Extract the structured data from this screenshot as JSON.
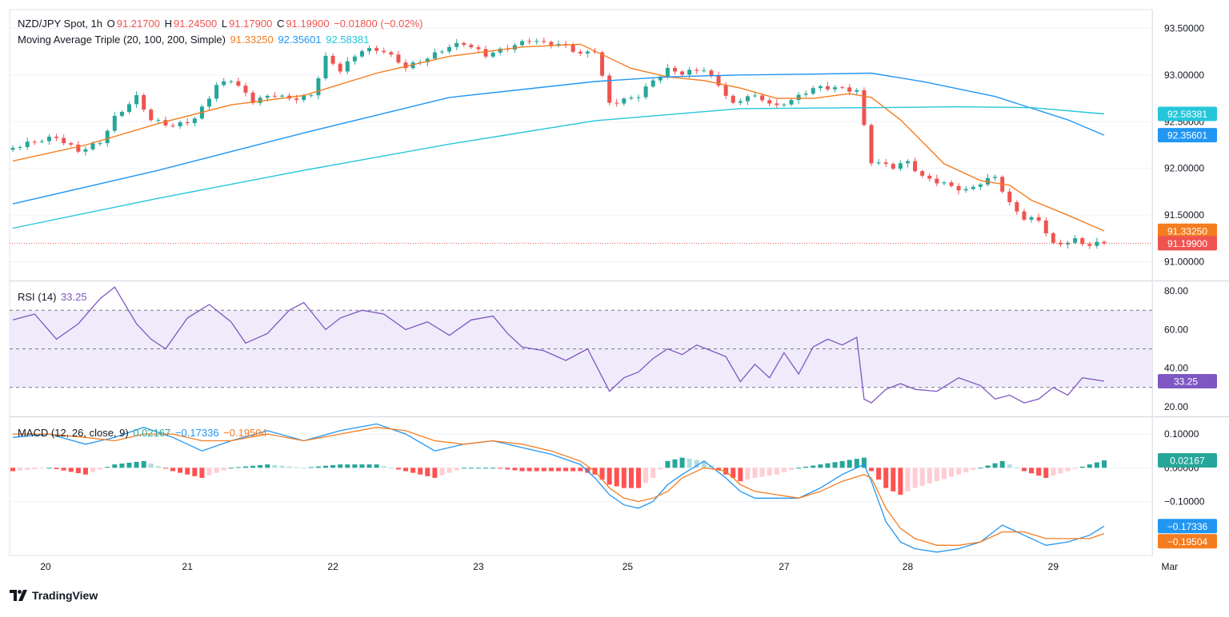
{
  "header": {
    "symbol": "NZD/JPY Spot, 1h",
    "o_label": "O",
    "o_value": "91.21700",
    "h_label": "H",
    "h_value": "91.24500",
    "l_label": "L",
    "l_value": "91.17900",
    "c_label": "C",
    "c_value": "91.19900",
    "change": "−0.01800 (−0.02%)",
    "ma_label": "Moving Average Triple (20, 100, 200, Simple)",
    "ma20_value": "91.33250",
    "ma100_value": "92.35601",
    "ma200_value": "92.58381"
  },
  "rsi": {
    "label": "RSI (14)",
    "value": "33.25"
  },
  "macd": {
    "label": "MACD (12, 26, close, 9)",
    "hist_value": "0.02167",
    "macd_value": "−0.17336",
    "signal_value": "−0.19504"
  },
  "footer": {
    "brand": "TradingView"
  },
  "colors": {
    "up": "#26a69a",
    "down": "#ef5350",
    "ma20": "#f57c1f",
    "ma100": "#2196f3",
    "ma200": "#26c6da",
    "rsi": "#7e57c2",
    "rsi_band": "#f0ebfa",
    "macd_line": "#2196f3",
    "signal_line": "#f57c1f",
    "hist_up_strong": "#26a69a",
    "hist_up_weak": "#b2dfdb",
    "hist_down_strong": "#ff5252",
    "hist_down_weak": "#ffcdd2"
  },
  "chart_data": [
    {
      "type": "candlestick",
      "title": "NZD/JPY Spot, 1h",
      "x_ticks": [
        "20",
        "21",
        "22",
        "23",
        "25",
        "27",
        "28",
        "29",
        "Mar"
      ],
      "y_ticks": [
        "93.50000",
        "93.00000",
        "92.50000",
        "92.00000",
        "91.50000",
        "91.00000"
      ],
      "ylim": [
        90.8,
        93.7
      ],
      "last_close": 91.199,
      "price_labels": [
        {
          "name": "MA 200",
          "value": "92.58381"
        },
        {
          "name": "MA 100",
          "value": "92.35601"
        },
        {
          "name": "MA 20",
          "value": "91.33250"
        },
        {
          "name": "Close",
          "value": "91.19900"
        }
      ],
      "close_path": [
        [
          0,
          92.22
        ],
        [
          6,
          92.32
        ],
        [
          9,
          92.2
        ],
        [
          12,
          92.3
        ],
        [
          14,
          92.55
        ],
        [
          17,
          92.75
        ],
        [
          19,
          92.5
        ],
        [
          22,
          92.45
        ],
        [
          25,
          92.55
        ],
        [
          28,
          92.9
        ],
        [
          30,
          92.95
        ],
        [
          33,
          92.7
        ],
        [
          36,
          92.78
        ],
        [
          38,
          92.75
        ],
        [
          41,
          92.8
        ],
        [
          43,
          93.2
        ],
        [
          45,
          93.05
        ],
        [
          48,
          93.25
        ],
        [
          51,
          93.25
        ],
        [
          54,
          93.1
        ],
        [
          57,
          93.2
        ],
        [
          60,
          93.3
        ],
        [
          62,
          93.32
        ],
        [
          65,
          93.2
        ],
        [
          68,
          93.3
        ],
        [
          71,
          93.4
        ],
        [
          73,
          93.35
        ],
        [
          76,
          93.3
        ],
        [
          78,
          93.2
        ],
        [
          80,
          93.25
        ],
        [
          82,
          92.7
        ],
        [
          84,
          92.75
        ],
        [
          86,
          92.8
        ],
        [
          88,
          92.95
        ],
        [
          90,
          93.05
        ],
        [
          92,
          93.0
        ],
        [
          95,
          93.05
        ],
        [
          97,
          92.9
        ],
        [
          99,
          92.7
        ],
        [
          101,
          92.8
        ],
        [
          103,
          92.75
        ],
        [
          105,
          92.65
        ],
        [
          108,
          92.75
        ],
        [
          110,
          92.85
        ],
        [
          113,
          92.88
        ],
        [
          116,
          92.85
        ],
        [
          118,
          92.08
        ],
        [
          121,
          92.0
        ],
        [
          123,
          92.05
        ],
        [
          125,
          91.9
        ],
        [
          128,
          91.85
        ],
        [
          131,
          91.78
        ],
        [
          133,
          91.85
        ],
        [
          135,
          91.9
        ],
        [
          137,
          91.6
        ],
        [
          139,
          91.45
        ],
        [
          141,
          91.45
        ],
        [
          143,
          91.2
        ],
        [
          146,
          91.25
        ],
        [
          148,
          91.18
        ],
        [
          150,
          91.2
        ]
      ],
      "series": [
        {
          "name": "Moving Average 20",
          "x": [
            0,
            10,
            20,
            30,
            40,
            50,
            60,
            70,
            78,
            85,
            90,
            95,
            100,
            105,
            110,
            115,
            118,
            122,
            128,
            133,
            137,
            140,
            145,
            150
          ],
          "y": [
            92.08,
            92.25,
            92.48,
            92.68,
            92.78,
            93.02,
            93.2,
            93.3,
            93.33,
            93.07,
            92.98,
            92.94,
            92.86,
            92.75,
            92.75,
            92.8,
            92.76,
            92.52,
            92.05,
            91.87,
            91.82,
            91.66,
            91.5,
            91.33
          ]
        },
        {
          "name": "Moving Average 100",
          "x": [
            0,
            20,
            40,
            60,
            80,
            90,
            100,
            110,
            118,
            125,
            135,
            145,
            150
          ],
          "y": [
            91.62,
            91.98,
            92.38,
            92.76,
            92.93,
            92.98,
            93.0,
            93.01,
            93.02,
            92.93,
            92.77,
            92.52,
            92.356
          ]
        },
        {
          "name": "Moving Average 200",
          "x": [
            0,
            20,
            40,
            60,
            80,
            100,
            118,
            130,
            140,
            150
          ],
          "y": [
            91.36,
            91.68,
            91.98,
            92.26,
            92.51,
            92.64,
            92.65,
            92.66,
            92.65,
            92.584
          ]
        }
      ]
    },
    {
      "type": "line",
      "title": "RSI (14)",
      "y_ticks": [
        "80.00",
        "60.00",
        "40.00",
        "20.00"
      ],
      "ylim": [
        15,
        85
      ],
      "bands": [
        70,
        50,
        30
      ],
      "series": [
        {
          "name": "RSI",
          "x": [
            0,
            3,
            6,
            9,
            12,
            14,
            17,
            19,
            21,
            24,
            27,
            30,
            32,
            35,
            38,
            40,
            43,
            45,
            48,
            51,
            54,
            57,
            60,
            63,
            66,
            68,
            70,
            73,
            76,
            79,
            82,
            84,
            86,
            88,
            90,
            92,
            94,
            96,
            98,
            100,
            102,
            104,
            106,
            108,
            110,
            112,
            114,
            116,
            117,
            118,
            120,
            122,
            124,
            127,
            130,
            133,
            135,
            137,
            139,
            141,
            143,
            145,
            147,
            150
          ],
          "y": [
            65,
            68,
            55,
            63,
            76,
            82,
            63,
            55,
            50,
            66,
            73,
            64,
            53,
            58,
            70,
            74,
            60,
            66,
            70,
            68,
            60,
            64,
            57,
            65,
            67,
            58,
            51,
            49,
            44,
            50,
            28,
            35,
            38,
            45,
            50,
            47,
            52,
            49,
            46,
            33,
            42,
            35,
            48,
            37,
            51,
            55,
            52,
            56,
            24,
            22,
            29,
            32,
            29,
            28,
            35,
            31,
            24,
            26,
            22,
            24,
            30,
            26,
            35,
            33.25
          ]
        }
      ]
    },
    {
      "type": "line+bar",
      "title": "MACD (12, 26, close, 9)",
      "y_ticks": [
        "0.10000",
        "0.00000",
        "−0.10000"
      ],
      "ylim": [
        -0.26,
        0.15
      ],
      "series": [
        {
          "name": "MACD",
          "x": [
            0,
            5,
            10,
            14,
            18,
            22,
            26,
            30,
            35,
            40,
            45,
            50,
            54,
            58,
            62,
            66,
            70,
            74,
            78,
            80,
            82,
            84,
            86,
            88,
            90,
            92,
            95,
            98,
            100,
            102,
            105,
            108,
            111,
            114,
            117,
            118,
            120,
            122,
            124,
            127,
            130,
            133,
            136,
            139,
            142,
            145,
            148,
            150
          ],
          "y": [
            0.09,
            0.1,
            0.07,
            0.09,
            0.12,
            0.09,
            0.05,
            0.08,
            0.11,
            0.08,
            0.11,
            0.13,
            0.1,
            0.05,
            0.07,
            0.08,
            0.06,
            0.04,
            0.01,
            -0.03,
            -0.08,
            -0.11,
            -0.12,
            -0.1,
            -0.05,
            -0.02,
            0.02,
            -0.03,
            -0.07,
            -0.09,
            -0.09,
            -0.09,
            -0.06,
            -0.02,
            0.01,
            -0.04,
            -0.16,
            -0.22,
            -0.24,
            -0.25,
            -0.24,
            -0.22,
            -0.17,
            -0.2,
            -0.23,
            -0.22,
            -0.2,
            -0.173
          ]
        },
        {
          "name": "Signal",
          "x": [
            0,
            5,
            10,
            14,
            18,
            22,
            26,
            30,
            35,
            40,
            45,
            50,
            54,
            58,
            62,
            66,
            70,
            74,
            78,
            80,
            82,
            84,
            86,
            88,
            90,
            92,
            95,
            98,
            100,
            102,
            105,
            108,
            111,
            114,
            117,
            118,
            120,
            122,
            124,
            127,
            130,
            133,
            136,
            139,
            142,
            145,
            148,
            150
          ],
          "y": [
            0.1,
            0.1,
            0.09,
            0.08,
            0.1,
            0.1,
            0.08,
            0.08,
            0.1,
            0.08,
            0.1,
            0.12,
            0.11,
            0.08,
            0.07,
            0.08,
            0.07,
            0.05,
            0.02,
            -0.01,
            -0.06,
            -0.09,
            -0.1,
            -0.09,
            -0.07,
            -0.03,
            0.0,
            -0.01,
            -0.05,
            -0.07,
            -0.08,
            -0.09,
            -0.07,
            -0.04,
            -0.02,
            -0.03,
            -0.12,
            -0.18,
            -0.21,
            -0.23,
            -0.23,
            -0.22,
            -0.19,
            -0.19,
            -0.21,
            -0.21,
            -0.21,
            -0.195
          ]
        },
        {
          "name": "Histogram",
          "x": [
            0,
            5,
            10,
            14,
            18,
            22,
            26,
            30,
            35,
            40,
            45,
            50,
            54,
            58,
            62,
            66,
            70,
            74,
            78,
            80,
            82,
            84,
            86,
            88,
            90,
            92,
            95,
            98,
            100,
            102,
            105,
            108,
            111,
            114,
            117,
            118,
            120,
            122,
            124,
            127,
            130,
            133,
            136,
            139,
            142,
            145,
            148,
            150
          ],
          "y": [
            -0.01,
            0.0,
            -0.02,
            0.01,
            0.02,
            -0.01,
            -0.03,
            0.0,
            0.01,
            0.0,
            0.01,
            0.01,
            -0.01,
            -0.03,
            0.0,
            0.0,
            -0.01,
            -0.01,
            -0.01,
            -0.02,
            -0.05,
            -0.06,
            -0.06,
            -0.03,
            0.02,
            0.03,
            0.02,
            -0.02,
            -0.04,
            -0.03,
            -0.02,
            0.0,
            0.01,
            0.02,
            0.03,
            -0.01,
            -0.06,
            -0.08,
            -0.06,
            -0.04,
            -0.02,
            0.0,
            0.02,
            -0.01,
            -0.03,
            -0.01,
            0.01,
            0.022
          ]
        }
      ]
    }
  ]
}
